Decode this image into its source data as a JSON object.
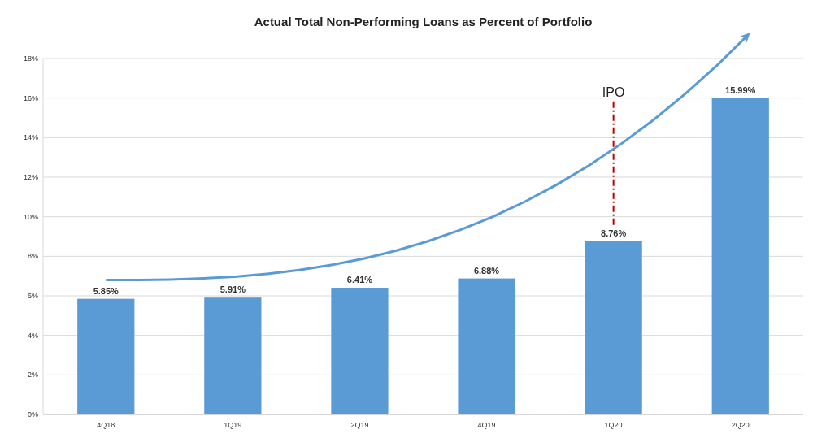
{
  "chart_data": {
    "type": "bar",
    "title": "Actual Total Non-Performing Loans as Percent of Portfolio",
    "categories": [
      "4Q18",
      "1Q19",
      "2Q19",
      "4Q19",
      "1Q20",
      "2Q20"
    ],
    "values": [
      5.85,
      5.91,
      6.41,
      6.88,
      8.76,
      15.99
    ],
    "value_labels": [
      "5.85%",
      "5.91%",
      "6.41%",
      "6.88%",
      "8.76%",
      "15.99%"
    ],
    "color": "#5b9bd5",
    "ylim": [
      0,
      18
    ],
    "yticks": [
      {
        "value": 0,
        "label": "0%"
      },
      {
        "value": 2,
        "label": "2%"
      },
      {
        "value": 4,
        "label": "4%"
      },
      {
        "value": 6,
        "label": "6%"
      },
      {
        "value": 8,
        "label": "8%"
      },
      {
        "value": 10,
        "label": "10%"
      },
      {
        "value": 12,
        "label": "12%"
      },
      {
        "value": 14,
        "label": "14%"
      },
      {
        "value": 16,
        "label": "16%"
      },
      {
        "value": 18,
        "label": "18%"
      }
    ],
    "grid": "y",
    "ref_lines": [
      {
        "axis": "x",
        "value": "1Q20",
        "label": "IPO",
        "color": "#c00000",
        "line_style": "dashdot"
      }
    ]
  }
}
